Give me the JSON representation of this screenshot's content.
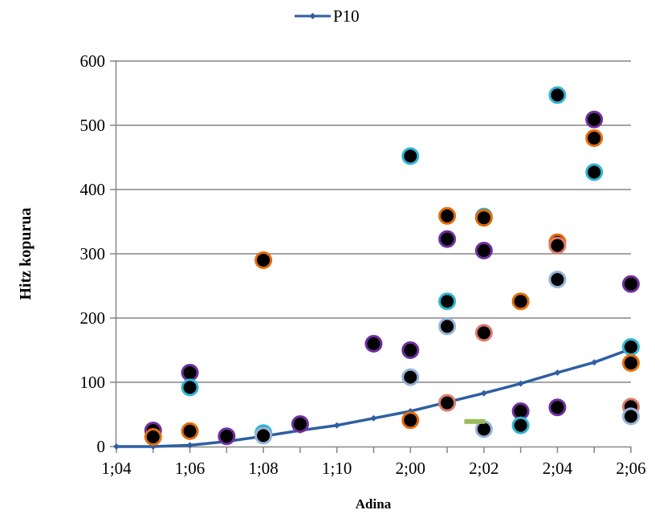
{
  "chart_data": {
    "type": "scatter",
    "title": "",
    "xlabel": "Adina",
    "ylabel": "Hitz kopurua",
    "x_tick_labels": [
      "1;04",
      "1;06",
      "1;08",
      "1;10",
      "2;00",
      "2;02",
      "2;04",
      "2;06"
    ],
    "xlim_index": [
      0,
      14
    ],
    "ylim": [
      0,
      600
    ],
    "y_ticks": [
      0,
      100,
      200,
      300,
      400,
      500,
      600
    ],
    "grid": "horizontal",
    "legend": {
      "position": "top-center",
      "entries": [
        {
          "name": "P10",
          "color": "#2e5fa1"
        }
      ]
    },
    "reference_line": {
      "name": "P10",
      "color": "#2e5fa1",
      "points": [
        [
          0,
          0
        ],
        [
          1,
          0
        ],
        [
          2,
          2
        ],
        [
          3,
          8
        ],
        [
          4,
          16
        ],
        [
          5,
          25
        ],
        [
          6,
          33
        ],
        [
          7,
          44
        ],
        [
          8,
          55
        ],
        [
          9,
          69
        ],
        [
          10,
          83
        ],
        [
          11,
          98
        ],
        [
          12,
          115
        ],
        [
          13,
          131
        ],
        [
          14,
          152
        ]
      ]
    },
    "scatter_points": [
      {
        "x": 1,
        "y": 25,
        "ring": "#7030a0"
      },
      {
        "x": 1,
        "y": 15,
        "ring": "#e46c0a"
      },
      {
        "x": 2,
        "y": 115,
        "ring": "#7030a0"
      },
      {
        "x": 2,
        "y": 92,
        "ring": "#31b6d2"
      },
      {
        "x": 2,
        "y": 24,
        "ring": "#e46c0a"
      },
      {
        "x": 3,
        "y": 16,
        "ring": "#7030a0"
      },
      {
        "x": 4,
        "y": 290,
        "ring": "#e46c0a"
      },
      {
        "x": 4,
        "y": 21,
        "ring": "#31b6d2"
      },
      {
        "x": 4,
        "y": 17,
        "ring": "#95b3d7"
      },
      {
        "x": 5,
        "y": 35,
        "ring": "#7030a0"
      },
      {
        "x": 7,
        "y": 160,
        "ring": "#7030a0"
      },
      {
        "x": 8,
        "y": 452,
        "ring": "#31b6d2"
      },
      {
        "x": 8,
        "y": 150,
        "ring": "#7030a0"
      },
      {
        "x": 8,
        "y": 108,
        "ring": "#95b3d7"
      },
      {
        "x": 8,
        "y": 41,
        "ring": "#e46c0a"
      },
      {
        "x": 9,
        "y": 359,
        "ring": "#e46c0a"
      },
      {
        "x": 9,
        "y": 323,
        "ring": "#7030a0"
      },
      {
        "x": 9,
        "y": 226,
        "ring": "#31b6d2"
      },
      {
        "x": 9,
        "y": 187,
        "ring": "#95b3d7"
      },
      {
        "x": 9,
        "y": 68,
        "ring": "#da7a6c"
      },
      {
        "x": 10,
        "y": 358,
        "ring": "#31b6d2"
      },
      {
        "x": 10,
        "y": 356,
        "ring": "#e46c0a"
      },
      {
        "x": 10,
        "y": 305,
        "ring": "#7030a0"
      },
      {
        "x": 10,
        "y": 177,
        "ring": "#da7a6c"
      },
      {
        "x": 10,
        "y": 27,
        "ring": "#95b3d7"
      },
      {
        "x": 11,
        "y": 226,
        "ring": "#e46c0a"
      },
      {
        "x": 11,
        "y": 55,
        "ring": "#7030a0"
      },
      {
        "x": 11,
        "y": 33,
        "ring": "#31b6d2"
      },
      {
        "x": 12,
        "y": 547,
        "ring": "#31b6d2"
      },
      {
        "x": 12,
        "y": 318,
        "ring": "#e46c0a"
      },
      {
        "x": 12,
        "y": 313,
        "ring": "#da7a6c"
      },
      {
        "x": 12,
        "y": 260,
        "ring": "#95b3d7"
      },
      {
        "x": 12,
        "y": 61,
        "ring": "#7030a0"
      },
      {
        "x": 13,
        "y": 509,
        "ring": "#7030a0"
      },
      {
        "x": 13,
        "y": 480,
        "ring": "#e46c0a"
      },
      {
        "x": 13,
        "y": 427,
        "ring": "#31b6d2"
      },
      {
        "x": 14,
        "y": 253,
        "ring": "#7030a0"
      },
      {
        "x": 14,
        "y": 155,
        "ring": "#31b6d2"
      },
      {
        "x": 14,
        "y": 130,
        "ring": "#e46c0a"
      },
      {
        "x": 14,
        "y": 62,
        "ring": "#da7a6c"
      },
      {
        "x": 14,
        "y": 47,
        "ring": "#95b3d7"
      }
    ],
    "dash_markers": [
      {
        "x": 9.75,
        "y": 39,
        "color": "#9bbb59"
      }
    ]
  }
}
